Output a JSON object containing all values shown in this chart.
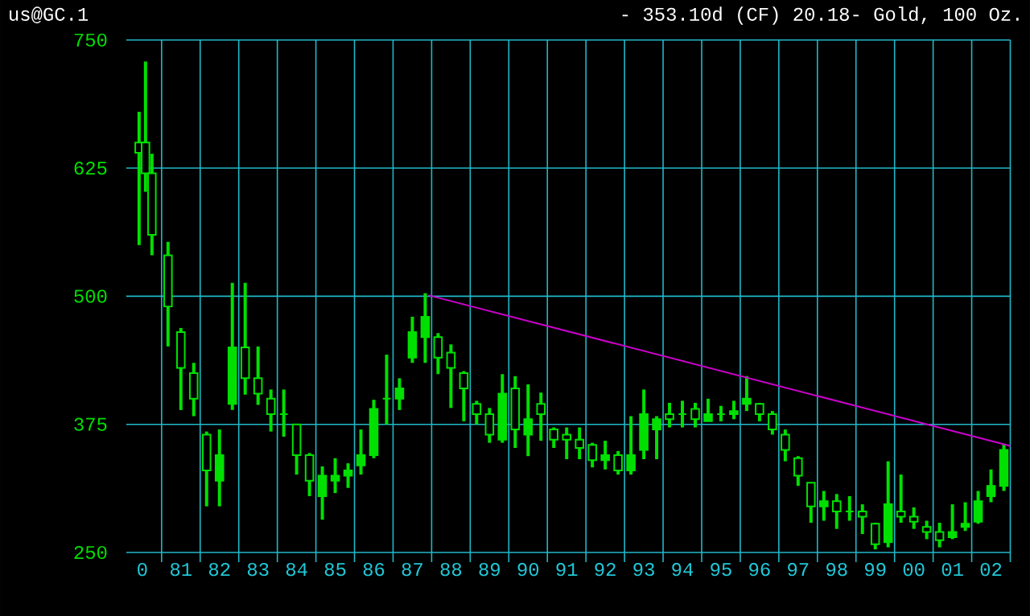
{
  "chart_data": {
    "type": "candlestick",
    "title": "us@GC.1",
    "subtitle": "- 353.10d (CF) 20.18- Gold, 100 Oz.",
    "xlim": [
      "1980-02",
      "2003-01"
    ],
    "ylim": [
      250,
      750
    ],
    "yticks": [
      250,
      375,
      500,
      625,
      750
    ],
    "grid": true,
    "xticks": [
      {
        "value": "1980-07",
        "label": "0"
      },
      {
        "value": "1981-07",
        "label": "81"
      },
      {
        "value": "1982-07",
        "label": "82"
      },
      {
        "value": "1983-07",
        "label": "83"
      },
      {
        "value": "1984-07",
        "label": "84"
      },
      {
        "value": "1985-07",
        "label": "85"
      },
      {
        "value": "1986-07",
        "label": "86"
      },
      {
        "value": "1987-07",
        "label": "87"
      },
      {
        "value": "1988-07",
        "label": "88"
      },
      {
        "value": "1989-07",
        "label": "89"
      },
      {
        "value": "1990-07",
        "label": "90"
      },
      {
        "value": "1991-07",
        "label": "91"
      },
      {
        "value": "1992-07",
        "label": "92"
      },
      {
        "value": "1993-07",
        "label": "93"
      },
      {
        "value": "1994-07",
        "label": "94"
      },
      {
        "value": "1995-07",
        "label": "95"
      },
      {
        "value": "1996-07",
        "label": "96"
      },
      {
        "value": "1997-07",
        "label": "97"
      },
      {
        "value": "1998-07",
        "label": "98"
      },
      {
        "value": "1999-07",
        "label": "99"
      },
      {
        "value": "2000-07",
        "label": "00"
      },
      {
        "value": "2001-07",
        "label": "01"
      },
      {
        "value": "2002-07",
        "label": "02"
      },
      {
        "value": "1981-01",
        "label": null
      },
      {
        "value": "1982-01",
        "label": null
      },
      {
        "value": "1983-01",
        "label": null
      },
      {
        "value": "1984-01",
        "label": null
      },
      {
        "value": "1985-01",
        "label": null
      },
      {
        "value": "1986-01",
        "label": null
      },
      {
        "value": "1987-01",
        "label": null
      },
      {
        "value": "1988-01",
        "label": null
      },
      {
        "value": "1989-01",
        "label": null
      },
      {
        "value": "1990-01",
        "label": null
      },
      {
        "value": "1991-01",
        "label": null
      },
      {
        "value": "1992-01",
        "label": null
      },
      {
        "value": "1993-01",
        "label": null
      },
      {
        "value": "1994-01",
        "label": null
      },
      {
        "value": "1995-01",
        "label": null
      },
      {
        "value": "1996-01",
        "label": null
      },
      {
        "value": "1997-01",
        "label": null
      },
      {
        "value": "1998-01",
        "label": null
      },
      {
        "value": "1999-01",
        "label": null
      },
      {
        "value": "2000-01",
        "label": null
      },
      {
        "value": "2001-01",
        "label": null
      },
      {
        "value": "2002-01",
        "label": null
      },
      {
        "value": "2003-01",
        "label": null
      }
    ],
    "series": [
      {
        "color": "#00e000",
        "x": [
          "1980-06",
          "1980-08",
          "1980-10",
          "1981-03",
          "1981-07",
          "1981-11",
          "1982-03",
          "1982-07",
          "1982-11",
          "1983-03",
          "1983-07",
          "1983-11",
          "1984-03",
          "1984-07",
          "1984-11",
          "1985-03",
          "1985-07",
          "1985-11",
          "1986-03",
          "1986-07",
          "1986-11",
          "1987-03",
          "1987-07",
          "1987-11",
          "1988-03",
          "1988-07",
          "1988-11",
          "1989-03",
          "1989-07",
          "1989-11",
          "1990-03",
          "1990-07",
          "1990-11",
          "1991-03",
          "1991-07",
          "1991-11",
          "1992-03",
          "1992-07",
          "1992-11",
          "1993-03",
          "1993-07",
          "1993-11",
          "1994-03",
          "1994-07",
          "1994-11",
          "1995-03",
          "1995-07",
          "1995-11",
          "1996-03",
          "1996-07",
          "1996-11",
          "1997-03",
          "1997-07",
          "1997-11",
          "1998-03",
          "1998-07",
          "1998-11",
          "1999-03",
          "1999-07",
          "1999-11",
          "2000-03",
          "2000-07",
          "2000-11",
          "2001-03",
          "2001-07",
          "2001-11",
          "2002-03",
          "2002-07",
          "2002-11"
        ],
        "ohlc": [
          [
            650,
            680,
            550,
            640
          ],
          [
            650,
            729,
            602,
            620
          ],
          [
            620,
            639,
            540,
            560
          ],
          [
            540,
            553,
            451,
            490
          ],
          [
            465,
            469,
            389,
            430
          ],
          [
            425,
            435,
            383,
            400
          ],
          [
            365,
            368,
            295,
            330
          ],
          [
            320,
            370,
            295,
            345
          ],
          [
            395,
            513,
            389,
            450
          ],
          [
            450,
            513,
            404,
            420
          ],
          [
            420,
            451,
            394,
            405
          ],
          [
            400,
            409,
            368,
            385
          ],
          [
            385,
            409,
            363,
            385
          ],
          [
            375,
            375,
            326,
            345
          ],
          [
            345,
            347,
            305,
            320
          ],
          [
            305,
            334,
            282,
            325
          ],
          [
            320,
            342,
            308,
            325
          ],
          [
            325,
            337,
            313,
            330
          ],
          [
            335,
            370,
            326,
            345
          ],
          [
            345,
            399,
            342,
            390
          ],
          [
            400,
            443,
            375,
            400
          ],
          [
            400,
            420,
            389,
            410
          ],
          [
            440,
            480,
            435,
            465
          ],
          [
            460,
            503,
            435,
            480
          ],
          [
            460,
            464,
            424,
            440
          ],
          [
            445,
            453,
            391,
            430
          ],
          [
            425,
            427,
            378,
            410
          ],
          [
            395,
            398,
            375,
            385
          ],
          [
            385,
            391,
            357,
            365
          ],
          [
            360,
            424,
            357,
            405
          ],
          [
            410,
            422,
            352,
            370
          ],
          [
            365,
            414,
            344,
            380
          ],
          [
            395,
            406,
            359,
            385
          ],
          [
            370,
            372,
            352,
            360
          ],
          [
            365,
            372,
            341,
            360
          ],
          [
            360,
            372,
            341,
            352
          ],
          [
            355,
            357,
            333,
            340
          ],
          [
            340,
            359,
            331,
            345
          ],
          [
            345,
            349,
            326,
            330
          ],
          [
            330,
            383,
            326,
            345
          ],
          [
            350,
            409,
            341,
            385
          ],
          [
            370,
            383,
            341,
            380
          ],
          [
            385,
            396,
            372,
            380
          ],
          [
            385,
            398,
            372,
            385
          ],
          [
            390,
            396,
            372,
            380
          ],
          [
            378,
            400,
            378,
            385
          ],
          [
            385,
            393,
            378,
            385
          ],
          [
            385,
            398,
            380,
            388
          ],
          [
            395,
            422,
            388,
            400
          ],
          [
            395,
            396,
            378,
            385
          ],
          [
            385,
            388,
            365,
            370
          ],
          [
            365,
            370,
            339,
            350
          ],
          [
            342,
            344,
            315,
            325
          ],
          [
            318,
            318,
            279,
            295
          ],
          [
            295,
            310,
            281,
            300
          ],
          [
            300,
            307,
            273,
            290
          ],
          [
            290,
            305,
            281,
            290
          ],
          [
            290,
            297,
            268,
            285
          ],
          [
            278,
            279,
            253,
            258
          ],
          [
            260,
            339,
            255,
            297
          ],
          [
            290,
            326,
            279,
            285
          ],
          [
            285,
            294,
            273,
            280
          ],
          [
            275,
            281,
            263,
            270
          ],
          [
            270,
            279,
            255,
            262
          ],
          [
            265,
            297,
            263,
            270
          ],
          [
            275,
            299,
            271,
            278
          ],
          [
            280,
            310,
            278,
            300
          ],
          [
            305,
            331,
            299,
            315
          ],
          [
            315,
            356,
            310,
            350
          ]
        ]
      },
      {
        "type": "line",
        "color": "#cc00cc",
        "x": [
          "1987-12",
          "2003-01"
        ],
        "values": [
          501,
          354
        ]
      }
    ]
  }
}
